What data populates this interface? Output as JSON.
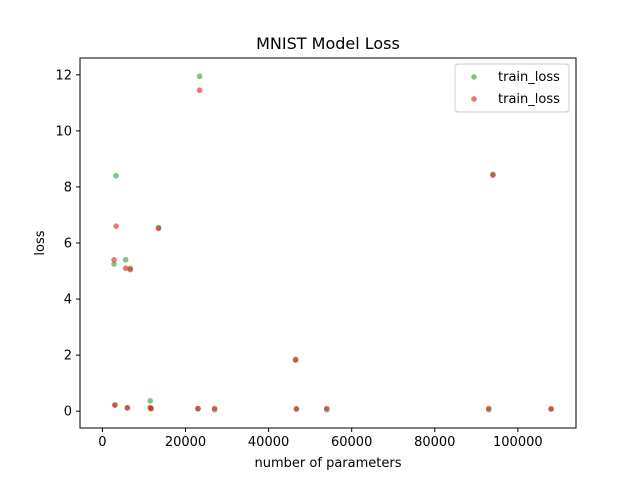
{
  "chart_data": {
    "type": "scatter",
    "title": "MNIST Model Loss",
    "xlabel": "number of parameters",
    "ylabel": "loss",
    "xlim": [
      -5400,
      114000
    ],
    "ylim": [
      -0.6,
      12.6
    ],
    "xticks": [
      0,
      20000,
      40000,
      60000,
      80000,
      100000
    ],
    "yticks": [
      0,
      2,
      4,
      6,
      8,
      10,
      12
    ],
    "grid": false,
    "legend_position": "top-right",
    "series": [
      {
        "name": "train_loss",
        "color": "#2ca02c",
        "points": [
          {
            "x": 2800,
            "y": 5.25
          },
          {
            "x": 3000,
            "y": 0.22
          },
          {
            "x": 3300,
            "y": 8.4
          },
          {
            "x": 5600,
            "y": 5.4
          },
          {
            "x": 6000,
            "y": 0.12
          },
          {
            "x": 6700,
            "y": 5.1
          },
          {
            "x": 11500,
            "y": 0.37
          },
          {
            "x": 11700,
            "y": 0.1
          },
          {
            "x": 13500,
            "y": 6.55
          },
          {
            "x": 23000,
            "y": 0.09
          },
          {
            "x": 23400,
            "y": 11.95
          },
          {
            "x": 27000,
            "y": 0.05
          },
          {
            "x": 46500,
            "y": 1.85
          },
          {
            "x": 46700,
            "y": 0.08
          },
          {
            "x": 54000,
            "y": 0.05
          },
          {
            "x": 93000,
            "y": 0.05
          },
          {
            "x": 94000,
            "y": 8.45
          },
          {
            "x": 108000,
            "y": 0.08
          }
        ]
      },
      {
        "name": "train_loss",
        "color": "#e41a1c",
        "points": [
          {
            "x": 2800,
            "y": 5.4
          },
          {
            "x": 3000,
            "y": 0.22
          },
          {
            "x": 3300,
            "y": 6.6
          },
          {
            "x": 5600,
            "y": 5.1
          },
          {
            "x": 6000,
            "y": 0.12
          },
          {
            "x": 6700,
            "y": 5.05
          },
          {
            "x": 11500,
            "y": 0.13
          },
          {
            "x": 11700,
            "y": 0.09
          },
          {
            "x": 13500,
            "y": 6.52
          },
          {
            "x": 23000,
            "y": 0.09
          },
          {
            "x": 23400,
            "y": 11.45
          },
          {
            "x": 27000,
            "y": 0.1
          },
          {
            "x": 46500,
            "y": 1.82
          },
          {
            "x": 46700,
            "y": 0.08
          },
          {
            "x": 54000,
            "y": 0.1
          },
          {
            "x": 93000,
            "y": 0.1
          },
          {
            "x": 94000,
            "y": 8.42
          },
          {
            "x": 108000,
            "y": 0.08
          }
        ]
      }
    ]
  }
}
